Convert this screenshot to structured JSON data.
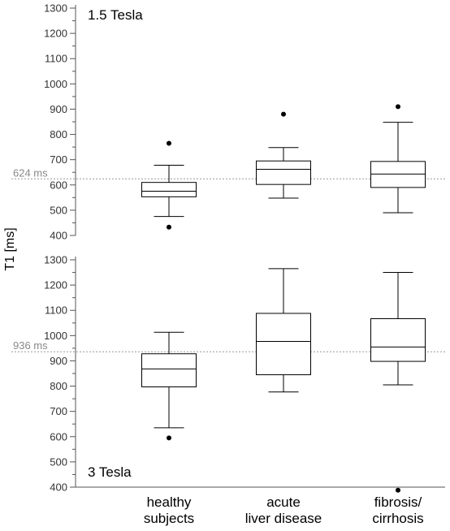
{
  "chart_data": [
    {
      "type": "box",
      "panel_label": "1.5 Tesla",
      "ylabel": "T1 [ms]",
      "ylim": [
        400,
        1300
      ],
      "yticks": [
        400,
        500,
        600,
        700,
        800,
        900,
        1000,
        1100,
        1200,
        1300
      ],
      "reference_line": {
        "value": 624,
        "label": "624 ms",
        "color": "#999999"
      },
      "categories": [
        "healthy subjects",
        "acute liver disease",
        "fibrosis/ cirrhosis"
      ],
      "boxes": [
        {
          "category": "healthy subjects",
          "whisker_low": 475,
          "q1": 553,
          "median": 575,
          "q3": 610,
          "whisker_high": 678,
          "outliers": [
            433,
            765
          ]
        },
        {
          "category": "acute liver disease",
          "whisker_low": 548,
          "q1": 602,
          "median": 662,
          "q3": 695,
          "whisker_high": 748,
          "outliers": [
            880
          ]
        },
        {
          "category": "fibrosis/ cirrhosis",
          "whisker_low": 490,
          "q1": 590,
          "median": 643,
          "q3": 693,
          "whisker_high": 848,
          "outliers": [
            910
          ]
        }
      ]
    },
    {
      "type": "box",
      "panel_label": "3 Tesla",
      "ylabel": "T1 [ms]",
      "ylim": [
        400,
        1300
      ],
      "yticks": [
        400,
        500,
        600,
        700,
        800,
        900,
        1000,
        1100,
        1200,
        1300
      ],
      "reference_line": {
        "value": 936,
        "label": "936 ms",
        "color": "#999999"
      },
      "categories": [
        "healthy subjects",
        "acute liver disease",
        "fibrosis/ cirrhosis"
      ],
      "boxes": [
        {
          "category": "healthy subjects",
          "whisker_low": 635,
          "q1": 797,
          "median": 868,
          "q3": 928,
          "whisker_high": 1013,
          "outliers": [
            595
          ]
        },
        {
          "category": "acute liver disease",
          "whisker_low": 777,
          "q1": 845,
          "median": 977,
          "q3": 1088,
          "whisker_high": 1265,
          "outliers": []
        },
        {
          "category": "fibrosis/ cirrhosis",
          "whisker_low": 805,
          "q1": 898,
          "median": 955,
          "q3": 1067,
          "whisker_high": 1250,
          "outliers": [
            388
          ]
        }
      ]
    }
  ],
  "shared": {
    "ylabel": "T1 [ms]",
    "category_labels": [
      [
        "healthy",
        "subjects"
      ],
      [
        "acute",
        "liver disease"
      ],
      [
        "fibrosis/",
        "cirrhosis"
      ]
    ],
    "colors": {
      "box": "#000000",
      "reference": "#999999",
      "axis": "#555555"
    }
  }
}
